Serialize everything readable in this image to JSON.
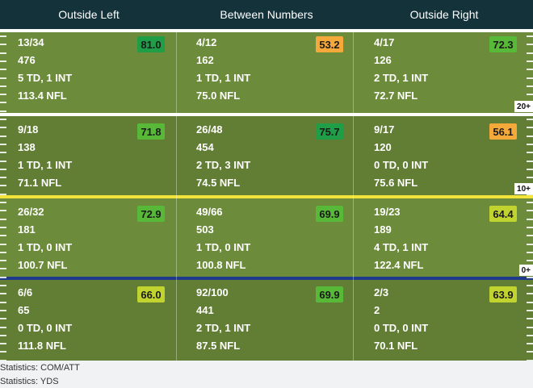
{
  "columns": [
    "Outside Left",
    "Between Numbers",
    "Outside Right"
  ],
  "colors": {
    "grade_dark_green": "#1f9e47",
    "grade_green": "#58b837",
    "grade_yellow_green": "#c1d32f",
    "grade_orange": "#f5a93a",
    "line_white": "#ffffff",
    "line_yellow": "#f2e43a",
    "line_blue": "#1f3a8a"
  },
  "zones": [
    {
      "marker": "20+",
      "cells": [
        {
          "comp": "13/34",
          "yds": "476",
          "tdint": "5 TD, 1 INT",
          "rating": "113.4 NFL",
          "grade": "81.0",
          "grade_color": "#1f9e47"
        },
        {
          "comp": "4/12",
          "yds": "162",
          "tdint": "1 TD, 1 INT",
          "rating": "75.0 NFL",
          "grade": "53.2",
          "grade_color": "#f5a93a"
        },
        {
          "comp": "4/17",
          "yds": "126",
          "tdint": "2 TD, 1 INT",
          "rating": "72.7 NFL",
          "grade": "72.3",
          "grade_color": "#58b837"
        }
      ]
    },
    {
      "marker": "10+",
      "cells": [
        {
          "comp": "9/18",
          "yds": "138",
          "tdint": "1 TD, 1 INT",
          "rating": "71.1 NFL",
          "grade": "71.8",
          "grade_color": "#58b837"
        },
        {
          "comp": "26/48",
          "yds": "454",
          "tdint": "2 TD, 3 INT",
          "rating": "74.5 NFL",
          "grade": "75.7",
          "grade_color": "#1f9e47"
        },
        {
          "comp": "9/17",
          "yds": "120",
          "tdint": "0 TD, 0 INT",
          "rating": "75.6 NFL",
          "grade": "56.1",
          "grade_color": "#f5a93a"
        }
      ]
    },
    {
      "marker": "0+",
      "cells": [
        {
          "comp": "26/32",
          "yds": "181",
          "tdint": "1 TD, 0 INT",
          "rating": "100.7 NFL",
          "grade": "72.9",
          "grade_color": "#58b837"
        },
        {
          "comp": "49/66",
          "yds": "503",
          "tdint": "1 TD, 0 INT",
          "rating": "100.8 NFL",
          "grade": "69.9",
          "grade_color": "#58b837"
        },
        {
          "comp": "19/23",
          "yds": "189",
          "tdint": "4 TD, 1 INT",
          "rating": "122.4 NFL",
          "grade": "64.4",
          "grade_color": "#c1d32f"
        }
      ]
    },
    {
      "marker": "",
      "cells": [
        {
          "comp": "6/6",
          "yds": "65",
          "tdint": "0 TD, 0 INT",
          "rating": "111.8 NFL",
          "grade": "66.0",
          "grade_color": "#c1d32f"
        },
        {
          "comp": "92/100",
          "yds": "441",
          "tdint": "2 TD, 1 INT",
          "rating": "87.5 NFL",
          "grade": "69.9",
          "grade_color": "#58b837"
        },
        {
          "comp": "2/3",
          "yds": "2",
          "tdint": "0 TD, 0 INT",
          "rating": "70.1 NFL",
          "grade": "63.9",
          "grade_color": "#c1d32f"
        }
      ]
    }
  ],
  "legend": [
    "Statistics: COM/ATT",
    "Statistics: YDS"
  ]
}
